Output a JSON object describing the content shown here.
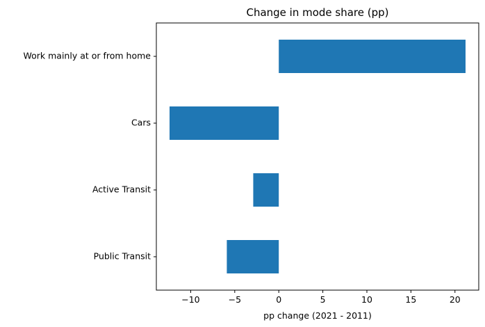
{
  "chart_data": {
    "type": "bar",
    "orientation": "horizontal",
    "title": "Change in mode share (pp)",
    "xlabel": "pp change (2021 - 2011)",
    "ylabel": "",
    "categories": [
      "Work mainly at or from home",
      "Cars",
      "Active Transit",
      "Public Transit"
    ],
    "values": [
      21.2,
      -12.4,
      -2.9,
      -5.9
    ],
    "xlim": [
      -13.9,
      22.7
    ],
    "xticks": [
      -10,
      -5,
      0,
      5,
      10,
      15,
      20
    ],
    "xtick_labels": [
      "−10",
      "−5",
      "0",
      "5",
      "10",
      "15",
      "20"
    ],
    "grid": false,
    "legend": "none",
    "bar_color": "#1f77b4"
  }
}
